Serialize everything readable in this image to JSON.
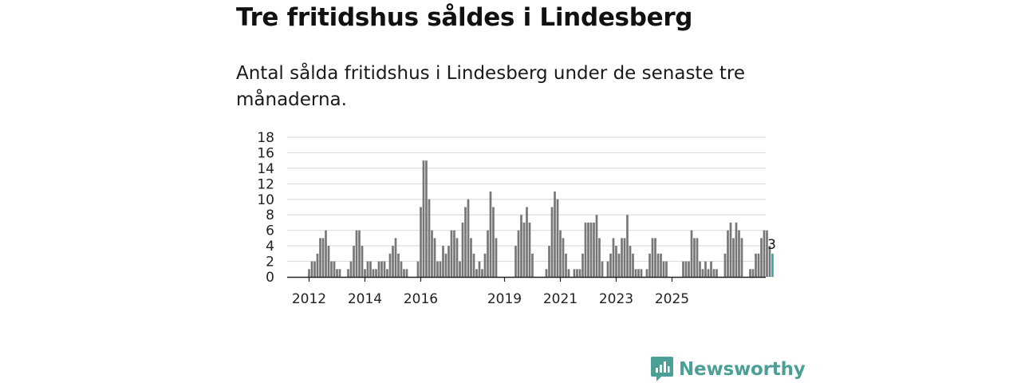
{
  "title": "Tre fritidshus såldes i Lindesberg",
  "subtitle": "Antal sålda fritidshus i Lindesberg under de senaste tre månaderna.",
  "brand": {
    "name": "Newsworthy",
    "icon": "newsworthy-logo-icon"
  },
  "colors": {
    "bar": "#777777",
    "highlight": "#3aa8a8",
    "grid": "#dddddd",
    "axis": "#222222",
    "brand": "#4b9f94"
  },
  "chart_data": {
    "type": "bar",
    "title": "Tre fritidshus såldes i Lindesberg",
    "xlabel": "",
    "ylabel": "",
    "ylim": [
      0,
      18
    ],
    "yticks": [
      "0",
      "2",
      "4",
      "6",
      "8",
      "10",
      "12",
      "14",
      "16",
      "18"
    ],
    "xticks": [
      {
        "label": "2012",
        "index": 0
      },
      {
        "label": "2014",
        "index": 20
      },
      {
        "label": "2016",
        "index": 40
      },
      {
        "label": "2019",
        "index": 70
      },
      {
        "label": "2021",
        "index": 90
      },
      {
        "label": "2023",
        "index": 110
      },
      {
        "label": "2025",
        "index": 130
      }
    ],
    "start": "2012-01",
    "values": [
      1,
      2,
      2,
      3,
      5,
      5,
      6,
      4,
      2,
      2,
      1,
      1,
      0,
      0,
      1,
      2,
      4,
      6,
      6,
      4,
      1,
      2,
      2,
      1,
      1,
      2,
      2,
      2,
      1,
      3,
      4,
      5,
      3,
      2,
      1,
      1,
      0,
      0,
      0,
      2,
      9,
      15,
      15,
      10,
      6,
      5,
      2,
      2,
      4,
      3,
      4,
      6,
      6,
      5,
      2,
      7,
      9,
      10,
      5,
      3,
      1,
      2,
      1,
      3,
      6,
      11,
      9,
      5,
      0,
      0,
      0,
      0,
      0,
      0,
      4,
      6,
      8,
      7,
      9,
      7,
      3,
      0,
      0,
      0,
      0,
      1,
      4,
      9,
      11,
      10,
      6,
      5,
      3,
      1,
      0,
      1,
      1,
      1,
      3,
      7,
      7,
      7,
      7,
      8,
      5,
      2,
      0,
      2,
      3,
      5,
      4,
      3,
      5,
      5,
      8,
      4,
      3,
      1,
      1,
      1,
      0,
      1,
      3,
      5,
      5,
      3,
      3,
      2,
      2,
      0,
      0,
      0,
      0,
      0,
      2,
      2,
      2,
      6,
      5,
      5,
      2,
      1,
      2,
      1,
      2,
      1,
      1,
      0,
      0,
      3,
      6,
      7,
      5,
      7,
      6,
      5,
      0,
      0,
      1,
      1,
      3,
      3,
      5,
      6,
      6,
      4,
      3
    ],
    "highlight_last": true,
    "last_label": "3"
  }
}
